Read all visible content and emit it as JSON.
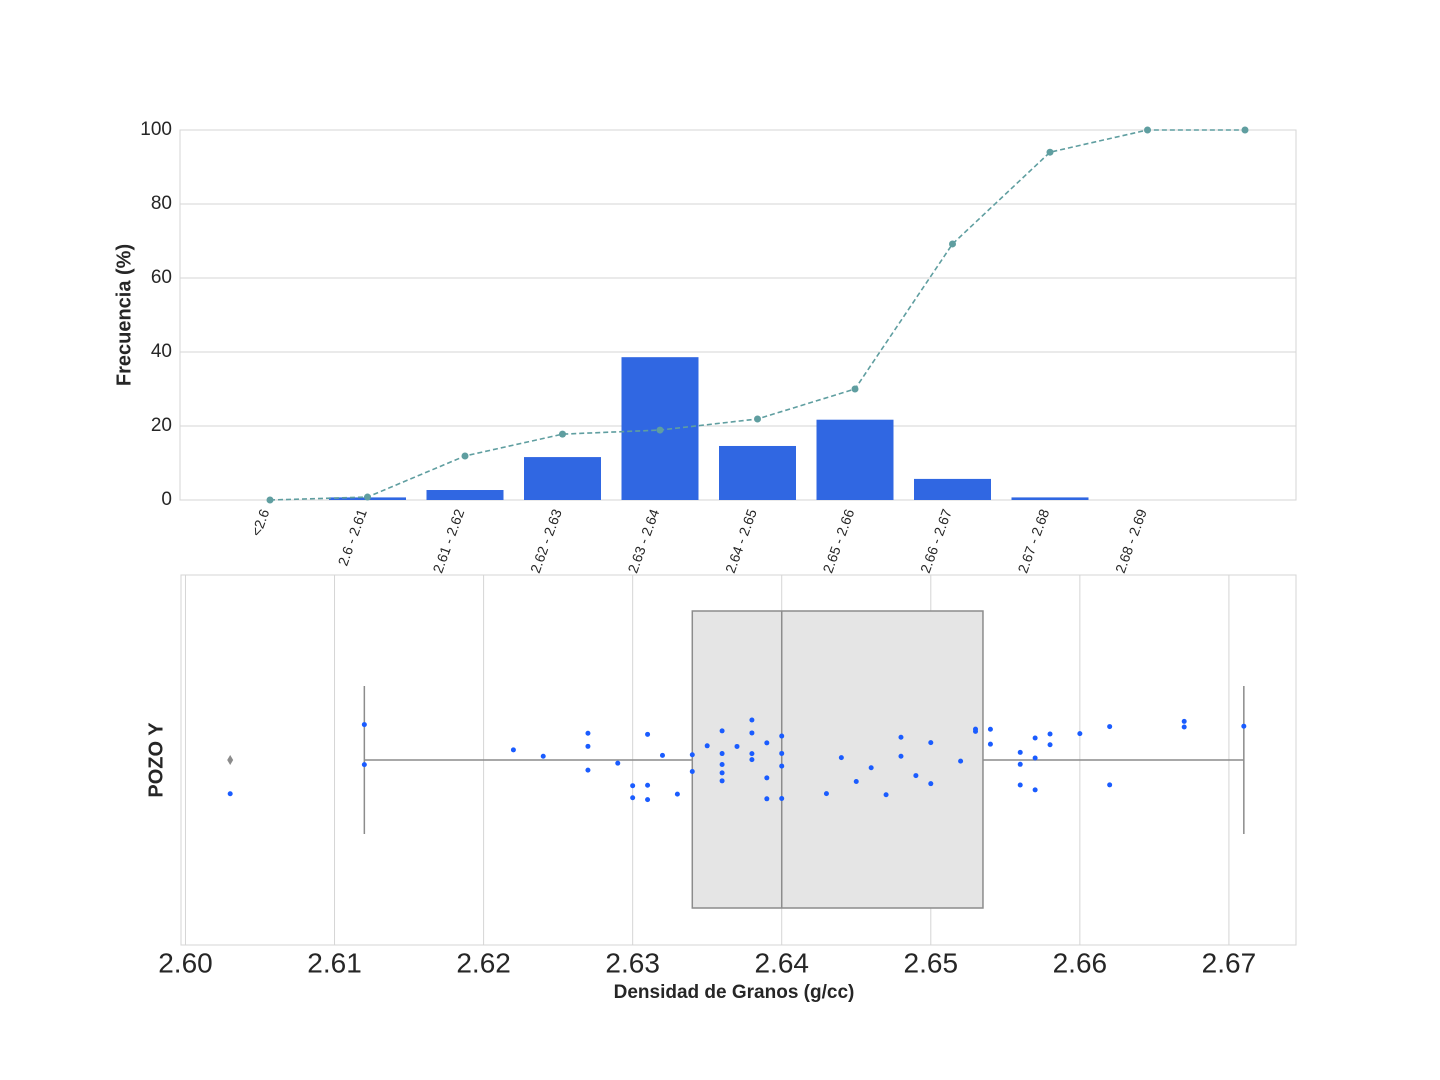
{
  "chart_data": [
    {
      "type": "bar",
      "ylabel": "Frecuencia (%)",
      "categories": [
        "<2.6",
        "2.6 - 2.61",
        "2.61 - 2.62",
        "2.62 - 2.63",
        "2.63 - 2.64",
        "2.64 - 2.65",
        "2.65 - 2.66",
        "2.66 - 2.67",
        "2.67 - 2.68",
        "2.68 - 2.69",
        null
      ],
      "values": [
        0,
        0.7,
        2.7,
        11.6,
        38.6,
        14.6,
        21.7,
        5.7,
        0.7,
        0,
        0
      ],
      "color": "#3067e2",
      "line": {
        "values": [
          0,
          0.8,
          11.9,
          17.8,
          18.9,
          21.9,
          30,
          69.2,
          94,
          100,
          100
        ],
        "color": "#5f9ea0",
        "dashed": true
      },
      "ylim": [
        0,
        100
      ],
      "yticks": [
        0,
        20,
        40,
        60,
        80,
        100
      ],
      "grid": true
    },
    {
      "type": "box",
      "xlabel": "Densidad de Granos (g/cc)",
      "ylabel": "POZO Y",
      "box": {
        "q1": 2.634,
        "median": 2.64,
        "q3": 2.6535,
        "whisker_low": 2.612,
        "whisker_high": 2.671,
        "outliers": [
          2.603
        ],
        "color": "#e5e5e5"
      },
      "points": {
        "values": [
          2.603,
          2.612,
          2.612,
          2.622,
          2.624,
          2.627,
          2.627,
          2.627,
          2.629,
          2.63,
          2.63,
          2.631,
          2.631,
          2.631,
          2.632,
          2.633,
          2.634,
          2.634,
          2.635,
          2.636,
          2.636,
          2.636,
          2.636,
          2.636,
          2.637,
          2.638,
          2.638,
          2.638,
          2.638,
          2.639,
          2.639,
          2.639,
          2.64,
          2.64,
          2.64,
          2.64,
          2.643,
          2.644,
          2.645,
          2.646,
          2.647,
          2.648,
          2.648,
          2.649,
          2.65,
          2.65,
          2.652,
          2.653,
          2.653,
          2.654,
          2.654,
          2.656,
          2.656,
          2.656,
          2.657,
          2.657,
          2.657,
          2.658,
          2.658,
          2.66,
          2.662,
          2.662,
          2.667,
          2.667,
          2.671
        ],
        "color": "#1a5cff"
      },
      "xlim": [
        2.5997,
        2.6745
      ],
      "xticks": [
        {
          "value": 2.6,
          "label": "2.60"
        },
        2.61,
        2.62,
        2.63,
        2.64,
        2.65,
        2.66,
        2.67
      ],
      "grid": true
    }
  ]
}
